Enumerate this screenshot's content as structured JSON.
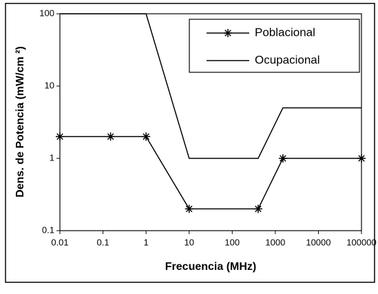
{
  "chart_data": {
    "type": "line",
    "x_label": "Frecuencia (MHz)",
    "y_label": "Dens. de Potencia (mW/cm ²)",
    "xscale": "log",
    "yscale": "log",
    "xlim": [
      0.01,
      100000
    ],
    "xticks": [
      0.01,
      0.1,
      1,
      10,
      100,
      1000,
      10000,
      100000
    ],
    "ylim": [
      0.1,
      100
    ],
    "yticks": [
      0.1,
      1,
      10,
      100
    ],
    "grid": false,
    "legend": "upper right",
    "series": [
      {
        "name": "Poblacional",
        "color": "#000000",
        "marker": "asterisk",
        "x": [
          0.01,
          0.15,
          1,
          10,
          400,
          1500,
          100000
        ],
        "values": [
          2,
          2,
          2,
          0.2,
          0.2,
          1,
          1
        ]
      },
      {
        "name": "Ocupacional",
        "color": "#000000",
        "x": [
          0.01,
          1,
          10,
          400,
          1500,
          100000
        ],
        "values": [
          100,
          100,
          1,
          1,
          5,
          5
        ]
      }
    ]
  }
}
